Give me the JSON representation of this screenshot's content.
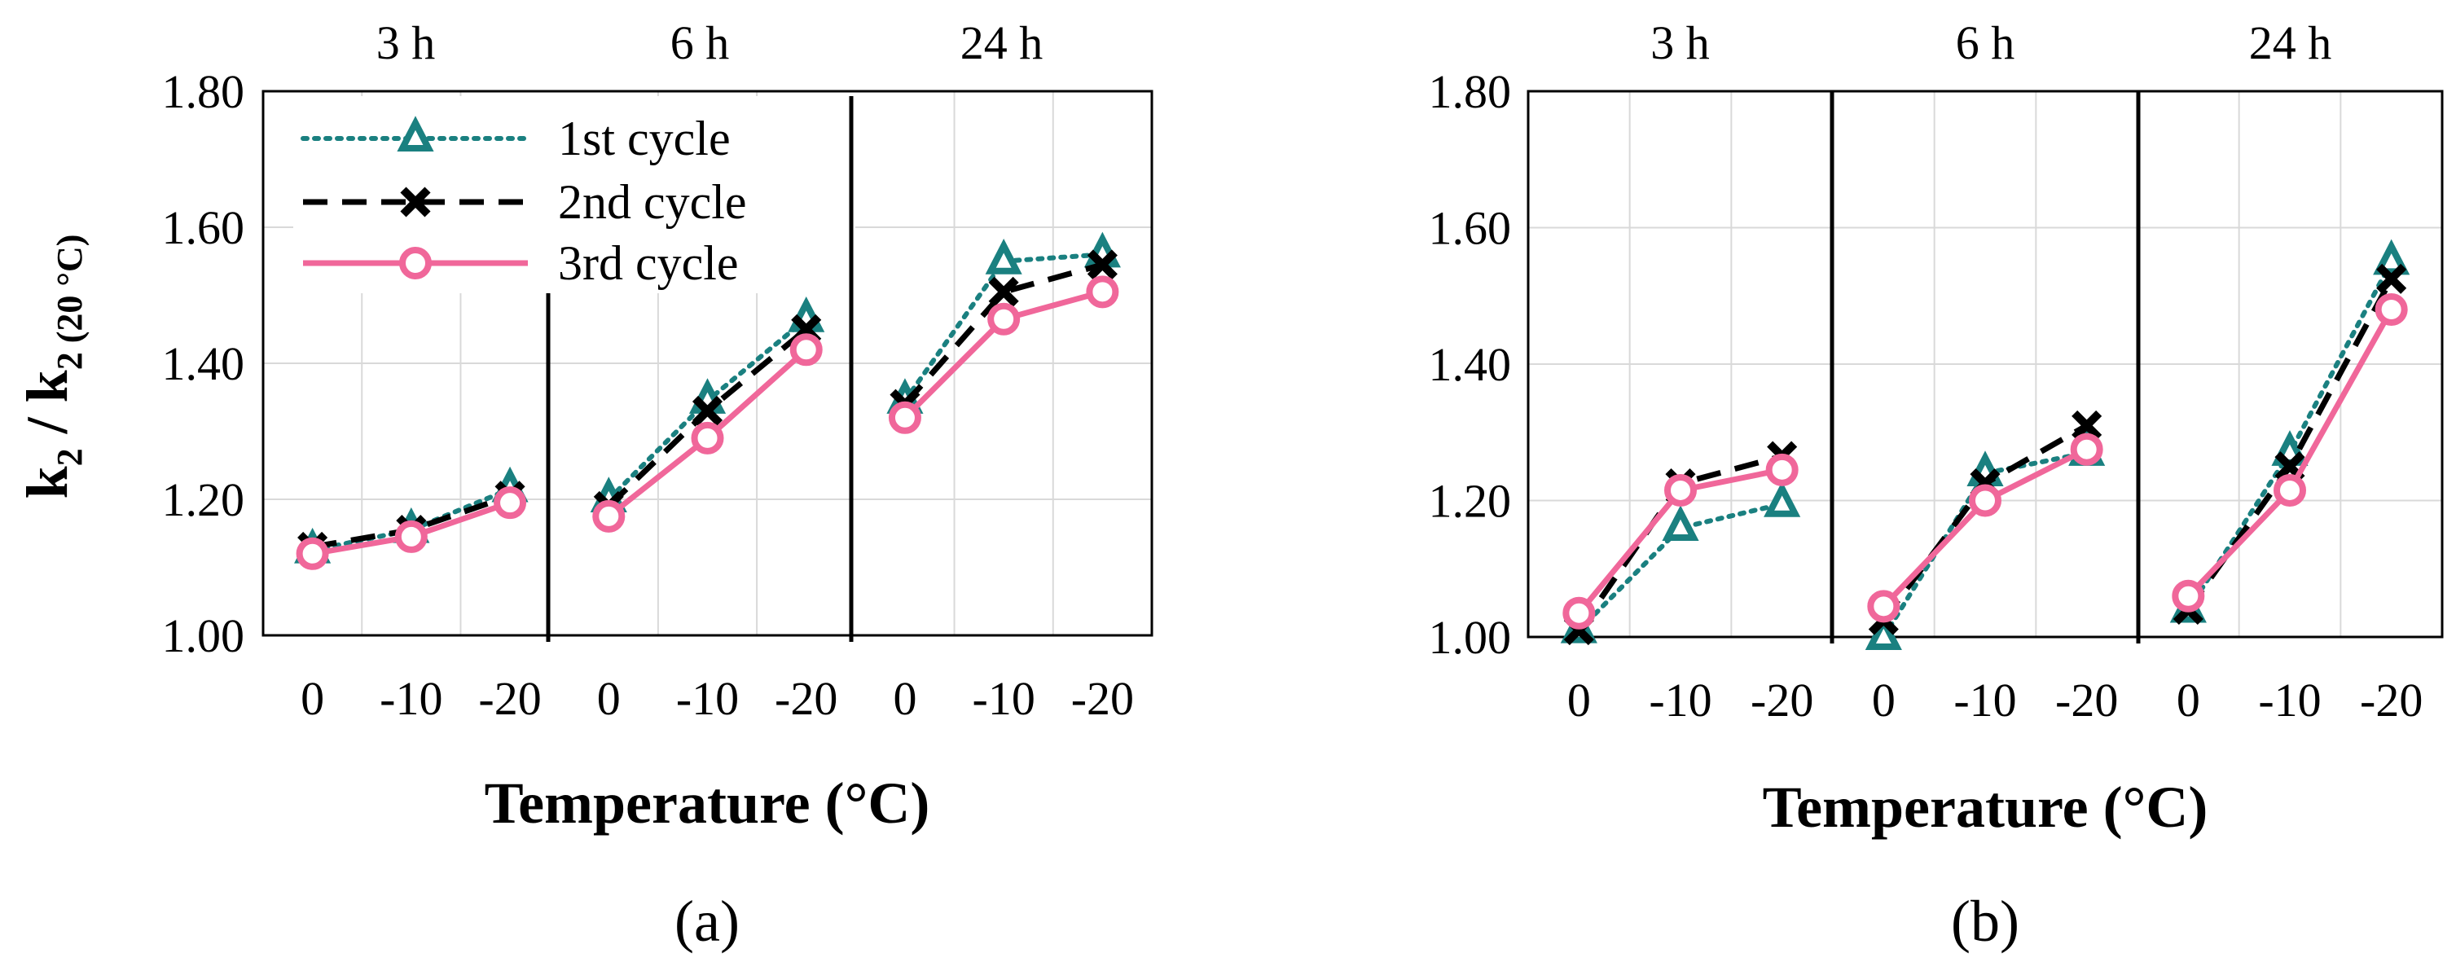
{
  "chart_data": [
    {
      "type": "line",
      "panel_label": "(a)",
      "groups": [
        "3 h",
        "6 h",
        "24 h"
      ],
      "categories": [
        "0",
        "-10",
        "-20"
      ],
      "xlabel": "Temperature (°C)",
      "ylabel": {
        "main": "k",
        "sub": "2",
        "sep": " / ",
        "sub2": "2 (20 °C)"
      },
      "ylim": [
        1.0,
        1.8
      ],
      "yticks": [
        "1.00",
        "1.20",
        "1.40",
        "1.60",
        "1.80"
      ],
      "legend": {
        "position": "top-left",
        "entries": [
          "1st cycle",
          "2nd cycle",
          "3rd cycle"
        ]
      },
      "series": [
        {
          "name": "1st cycle",
          "style": "dotted",
          "marker": "triangle",
          "color": "#1A8080",
          "values": [
            [
              1.125,
              1.155,
              1.215
            ],
            [
              1.2,
              1.345,
              1.465
            ],
            [
              1.345,
              1.55,
              1.56
            ]
          ]
        },
        {
          "name": "2nd cycle",
          "style": "dashed",
          "marker": "x",
          "color": "#000000",
          "values": [
            [
              1.13,
              1.155,
              1.205
            ],
            [
              1.19,
              1.33,
              1.45
            ],
            [
              1.34,
              1.505,
              1.545
            ]
          ]
        },
        {
          "name": "3rd cycle",
          "style": "solid",
          "marker": "circle",
          "color": "#F0679A",
          "values": [
            [
              1.12,
              1.145,
              1.195
            ],
            [
              1.175,
              1.29,
              1.42
            ],
            [
              1.32,
              1.465,
              1.505
            ]
          ]
        }
      ]
    },
    {
      "type": "line",
      "panel_label": "(b)",
      "groups": [
        "3 h",
        "6 h",
        "24 h"
      ],
      "categories": [
        "0",
        "-10",
        "-20"
      ],
      "xlabel": "Temperature (°C)",
      "ylim": [
        1.0,
        1.8
      ],
      "yticks": [
        "1.00",
        "1.20",
        "1.40",
        "1.60",
        "1.80"
      ],
      "series": [
        {
          "name": "1st cycle",
          "style": "dotted",
          "marker": "triangle",
          "color": "#1A8080",
          "values": [
            [
              1.01,
              1.16,
              1.195
            ],
            [
              1.0,
              1.24,
              1.27
            ],
            [
              1.04,
              1.27,
              1.55
            ]
          ]
        },
        {
          "name": "2nd cycle",
          "style": "dashed",
          "marker": "x",
          "color": "#000000",
          "values": [
            [
              1.01,
              1.225,
              1.265
            ],
            [
              1.025,
              1.225,
              1.31
            ],
            [
              1.04,
              1.25,
              1.525
            ]
          ]
        },
        {
          "name": "3rd cycle",
          "style": "solid",
          "marker": "circle",
          "color": "#F0679A",
          "values": [
            [
              1.035,
              1.215,
              1.245
            ],
            [
              1.045,
              1.2,
              1.275
            ],
            [
              1.06,
              1.215,
              1.48
            ]
          ]
        }
      ]
    }
  ]
}
